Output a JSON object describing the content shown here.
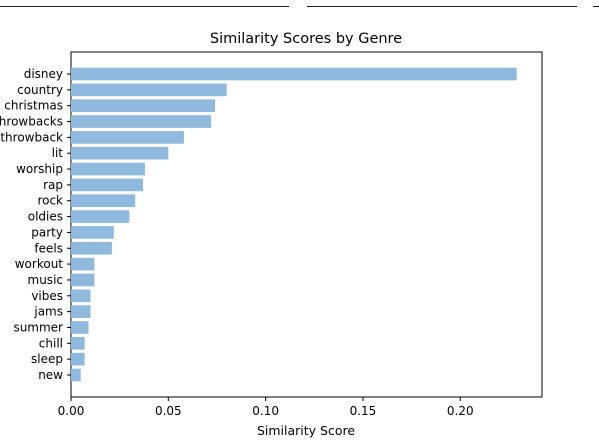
{
  "chart_data": {
    "type": "bar",
    "orientation": "horizontal",
    "title": "Similarity Scores by Genre",
    "xlabel": "Similarity Score",
    "ylabel": "",
    "xlim": [
      0,
      0.242
    ],
    "xticks": [
      0.0,
      0.05,
      0.1,
      0.15,
      0.2
    ],
    "xtick_labels": [
      "0.00",
      "0.05",
      "0.10",
      "0.15",
      "0.20"
    ],
    "grid": false,
    "bar_color": "#8fbadd",
    "categories": [
      "disney",
      "country",
      "christmas",
      "throwbacks",
      "throwback",
      "lit",
      "worship",
      "rap",
      "rock",
      "oldies",
      "party",
      "feels",
      "workout",
      "music",
      "vibes",
      "jams",
      "summer",
      "chill",
      "sleep",
      "new"
    ],
    "values": [
      0.229,
      0.08,
      0.074,
      0.072,
      0.058,
      0.05,
      0.038,
      0.037,
      0.033,
      0.03,
      0.022,
      0.021,
      0.012,
      0.012,
      0.01,
      0.01,
      0.009,
      0.007,
      0.007,
      0.005
    ]
  }
}
